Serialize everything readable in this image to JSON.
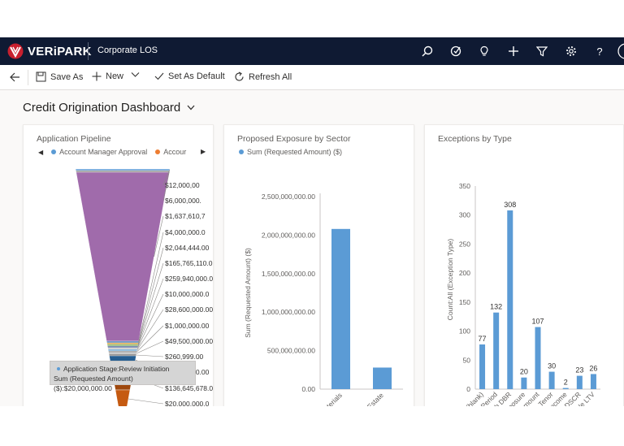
{
  "topbar": {
    "logo_text": "VERiPARK",
    "app_name": "Corporate LOS",
    "icons": [
      "search-icon",
      "target-icon",
      "lightbulb-icon",
      "plus-icon",
      "filter-icon",
      "gear-icon",
      "help-icon",
      "avatar"
    ],
    "help_label": "?"
  },
  "commandbar": {
    "back_icon": "back-arrow-icon",
    "save_as": "Save As",
    "new": "New",
    "set_default": "Set As Default",
    "refresh": "Refresh All"
  },
  "dashboard": {
    "title": "Credit Origination Dashboard"
  },
  "panels": {
    "pipeline": {
      "title": "Application Pipeline",
      "legend": [
        {
          "label": "Account Manager Approval",
          "color": "#5b9bd5"
        },
        {
          "label": "Accour",
          "color": "#ed7d31"
        }
      ],
      "tooltip_line1": "Application Stage:Review Initiation",
      "tooltip_line2": "Sum (Requested Amount) ($):$20,000,000.00"
    },
    "exposure": {
      "title": "Proposed Exposure by Sector",
      "legend_label": "Sum (Requested Amount) ($)",
      "legend_color": "#5b9bd5"
    },
    "exceptions": {
      "title": "Exceptions by Type"
    }
  },
  "chart_data": [
    {
      "type": "funnel",
      "title": "Application Pipeline",
      "labels": [
        "$12,000,00",
        "$6,000,000.",
        "$1,637,610,7",
        "$4,000,000.0",
        "$2,044,444.00",
        "$165,765,110.0",
        "$259,940,000.0",
        "$10,000,000.0",
        "$28,600,000.00",
        "$1,000,000.00",
        "$49,500,000.00",
        "$260,999.00",
        "$2,400,000.00",
        "$136,645,678.00",
        "$20,000,000.0"
      ],
      "colors": [
        "#5b9bd5",
        "#8f8f8f",
        "#a06bab",
        "#4a7db8",
        "#d9a440",
        "#7fb06a",
        "#5a6e9e",
        "#c7c7c7",
        "#6da8d6",
        "#9a9a9a",
        "#b8b8b8",
        "#7a7a7a",
        "#255e91",
        "#9e480e",
        "#c55a11"
      ]
    },
    {
      "type": "bar",
      "title": "Proposed Exposure by Sector",
      "categories": [
        "Construction Materials",
        "Real Estate"
      ],
      "values": [
        2080000000,
        280000000
      ],
      "ylabel": "Sum (Requested Amount) ($)",
      "ylim": [
        0,
        2500000000
      ],
      "yticks": [
        "0.00",
        "500,000,000.00",
        "1,000,000,000.00",
        "1,500,000,000.00",
        "2,000,000,000.00",
        "2,500,000,000.00"
      ],
      "color": "#5b9bd5"
    },
    {
      "type": "bar",
      "title": "Exceptions by Type",
      "categories": [
        "(blank)",
        "Grace Period",
        "High DBR",
        "High Finance Exposure",
        "High Loan Amount",
        "High Tenor",
        "Low Income",
        "Unacceptable DSCR",
        "Unacceptable LTV"
      ],
      "values": [
        77,
        132,
        308,
        20,
        107,
        30,
        2,
        23,
        26
      ],
      "ylabel": "Count:All (Exception Type)",
      "ylim": [
        0,
        350
      ],
      "yticks": [
        "0",
        "50",
        "100",
        "150",
        "200",
        "250",
        "300",
        "350"
      ],
      "color": "#5b9bd5"
    }
  ]
}
